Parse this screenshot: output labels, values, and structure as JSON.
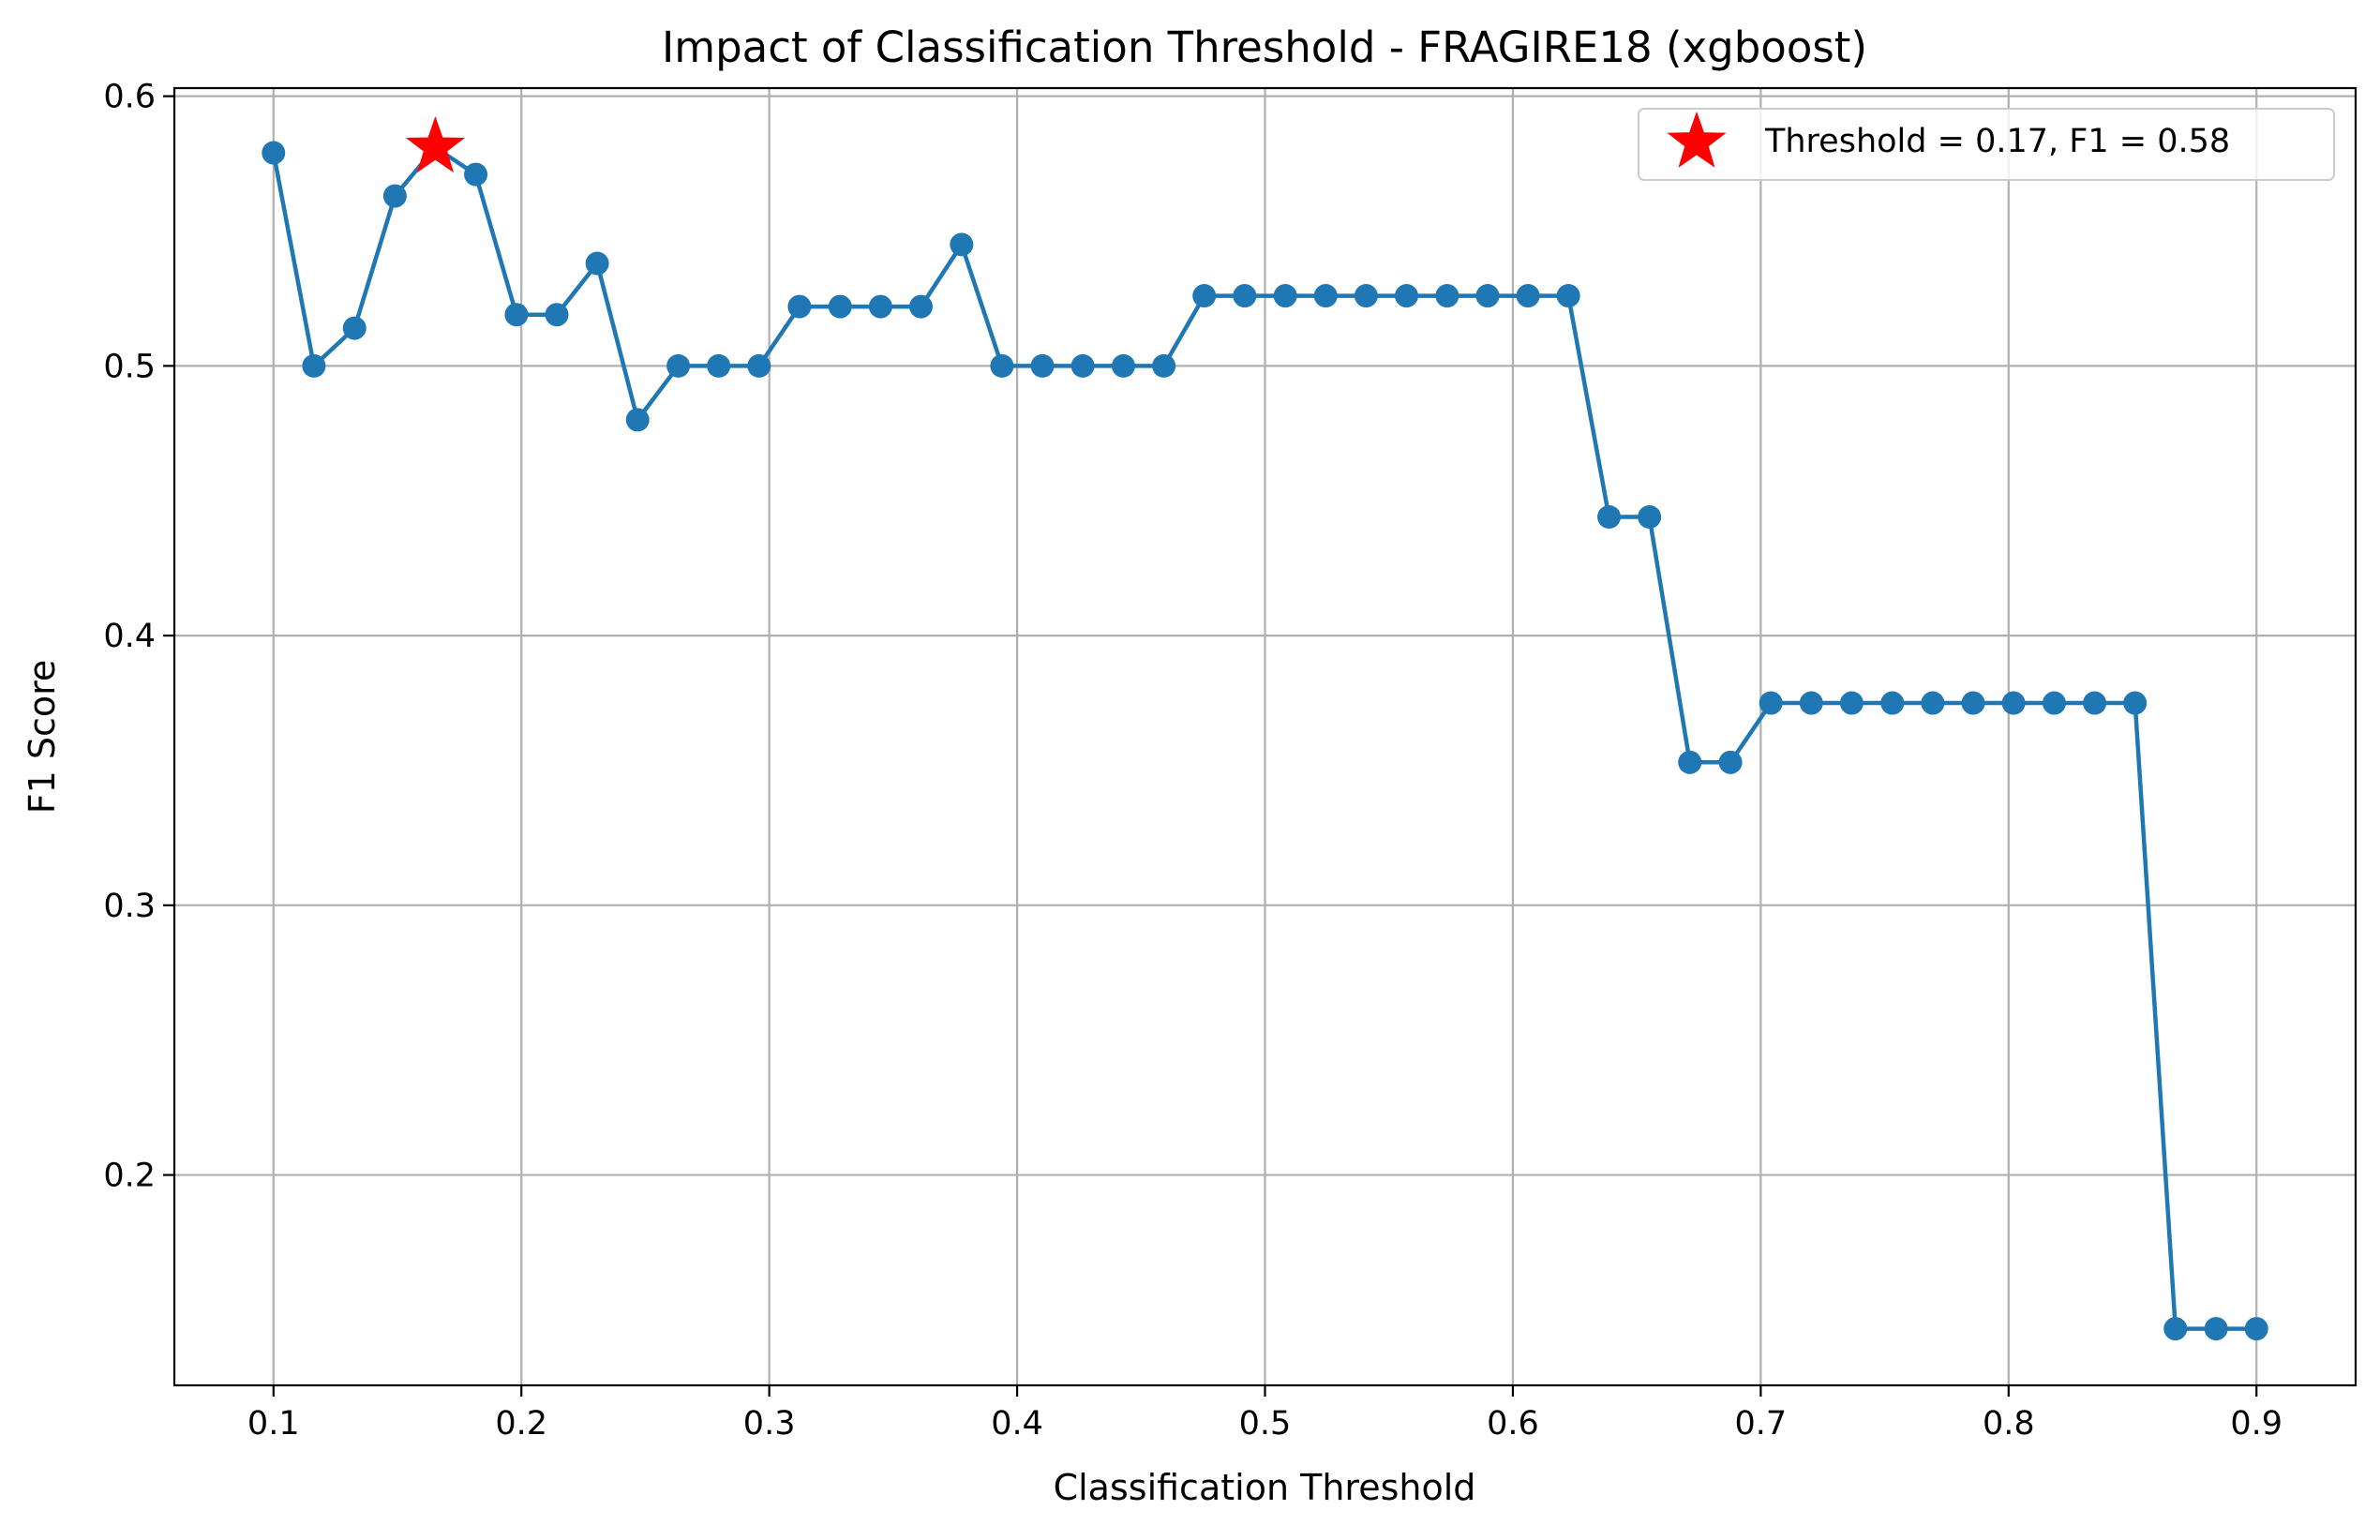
{
  "chart_data": {
    "type": "line",
    "title": "Impact of Classification Threshold - FRAGIRE18 (xgboost)",
    "xlabel": "Classification Threshold",
    "ylabel": "F1 Score",
    "xlim": [
      0.06,
      0.94
    ],
    "ylim": [
      0.122,
      0.603
    ],
    "xticks": [
      0.1,
      0.2,
      0.3,
      0.4,
      0.5,
      0.6,
      0.7,
      0.8,
      0.9
    ],
    "xtick_labels": [
      "0.1",
      "0.2",
      "0.3",
      "0.4",
      "0.5",
      "0.6",
      "0.7",
      "0.8",
      "0.9"
    ],
    "yticks": [
      0.2,
      0.3,
      0.4,
      0.5,
      0.6
    ],
    "ytick_labels": [
      "0.2",
      "0.3",
      "0.4",
      "0.5",
      "0.6"
    ],
    "grid": true,
    "legend_position": "top-right",
    "line_color": "#1f77b4",
    "marker_color": "#1f77b4",
    "highlight_color": "#ff0000",
    "series": [
      {
        "x": [
          0.1,
          0.1163,
          0.1327,
          0.149,
          0.1653,
          0.1816,
          0.198,
          0.2143,
          0.2306,
          0.2469,
          0.2633,
          0.2796,
          0.2959,
          0.3122,
          0.3286,
          0.3449,
          0.3612,
          0.3776,
          0.3939,
          0.4102,
          0.4265,
          0.4429,
          0.4592,
          0.4755,
          0.4918,
          0.5082,
          0.5245,
          0.5408,
          0.5571,
          0.5735,
          0.5898,
          0.6061,
          0.6224,
          0.6388,
          0.6551,
          0.6714,
          0.6878,
          0.7041,
          0.7204,
          0.7367,
          0.7531,
          0.7694,
          0.7857,
          0.802,
          0.8184,
          0.8347,
          0.851,
          0.8673,
          0.8837,
          0.9
        ],
        "values": [
          0.579,
          0.5,
          0.514,
          0.563,
          0.581,
          0.571,
          0.519,
          0.519,
          0.538,
          0.48,
          0.5,
          0.5,
          0.5,
          0.522,
          0.522,
          0.522,
          0.522,
          0.545,
          0.5,
          0.5,
          0.5,
          0.5,
          0.5,
          0.526,
          0.526,
          0.526,
          0.526,
          0.526,
          0.526,
          0.526,
          0.526,
          0.526,
          0.526,
          0.444,
          0.444,
          0.353,
          0.353,
          0.375,
          0.375,
          0.375,
          0.375,
          0.375,
          0.375,
          0.375,
          0.375,
          0.375,
          0.375,
          0.143,
          0.143,
          0.143
        ]
      }
    ],
    "highlight": {
      "x": 0.1653,
      "y": 0.581,
      "marker": "star",
      "label": "Threshold = 0.17, F1 = 0.58"
    }
  }
}
